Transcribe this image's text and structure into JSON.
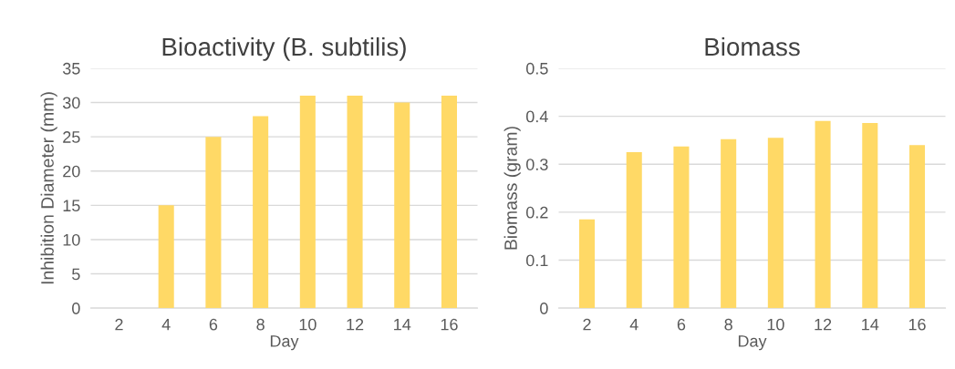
{
  "chart_data": [
    {
      "type": "bar",
      "title": "Bioactivity (B. subtilis)",
      "xlabel": "Day",
      "ylabel": "Inhibition Diameter (mm)",
      "categories": [
        "2",
        "4",
        "6",
        "8",
        "10",
        "12",
        "14",
        "16"
      ],
      "values": [
        0,
        15,
        25,
        28,
        31,
        31,
        30,
        31
      ],
      "color": "#ffd966",
      "ylim": [
        0,
        35
      ],
      "yticks": [
        0,
        5,
        10,
        15,
        20,
        25,
        30,
        35
      ],
      "grid": "y"
    },
    {
      "type": "bar",
      "title": "Biomass",
      "xlabel": "Day",
      "ylabel": "Biomass (gram)",
      "categories": [
        "2",
        "4",
        "6",
        "8",
        "10",
        "12",
        "14",
        "16"
      ],
      "values": [
        0.185,
        0.325,
        0.337,
        0.352,
        0.355,
        0.39,
        0.386,
        0.34
      ],
      "color": "#ffd966",
      "ylim": [
        0,
        0.5
      ],
      "yticks": [
        0,
        0.1,
        0.2,
        0.3,
        0.4,
        0.5
      ],
      "grid": "y"
    }
  ]
}
